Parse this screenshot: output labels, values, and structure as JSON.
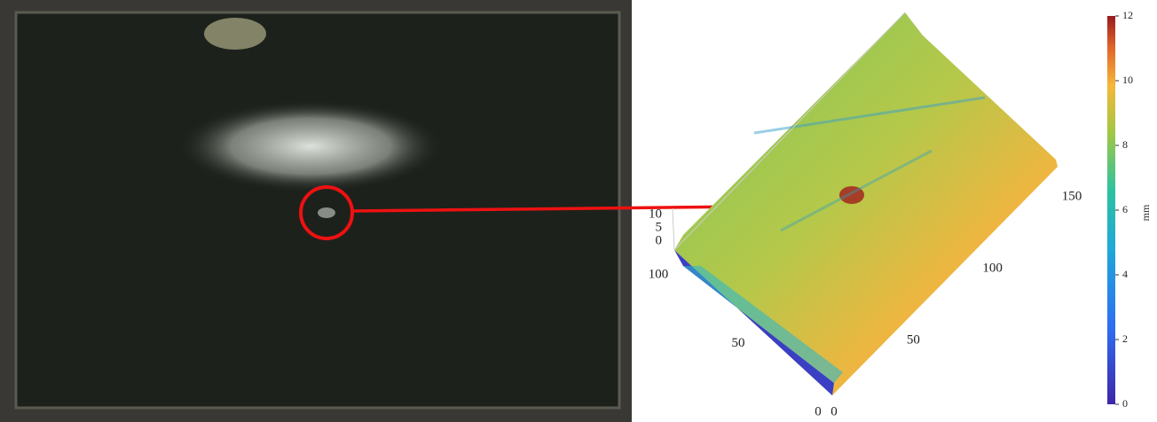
{
  "surface_plot": {
    "z_ticks": [
      0,
      5,
      10
    ],
    "x_ticks": [
      0,
      50,
      100
    ],
    "y_ticks": [
      0,
      50,
      100,
      150
    ]
  },
  "colorbar": {
    "label": "mm",
    "lim": [
      0,
      12
    ],
    "ticks": [
      0,
      2,
      4,
      6,
      8,
      10,
      12
    ]
  }
}
